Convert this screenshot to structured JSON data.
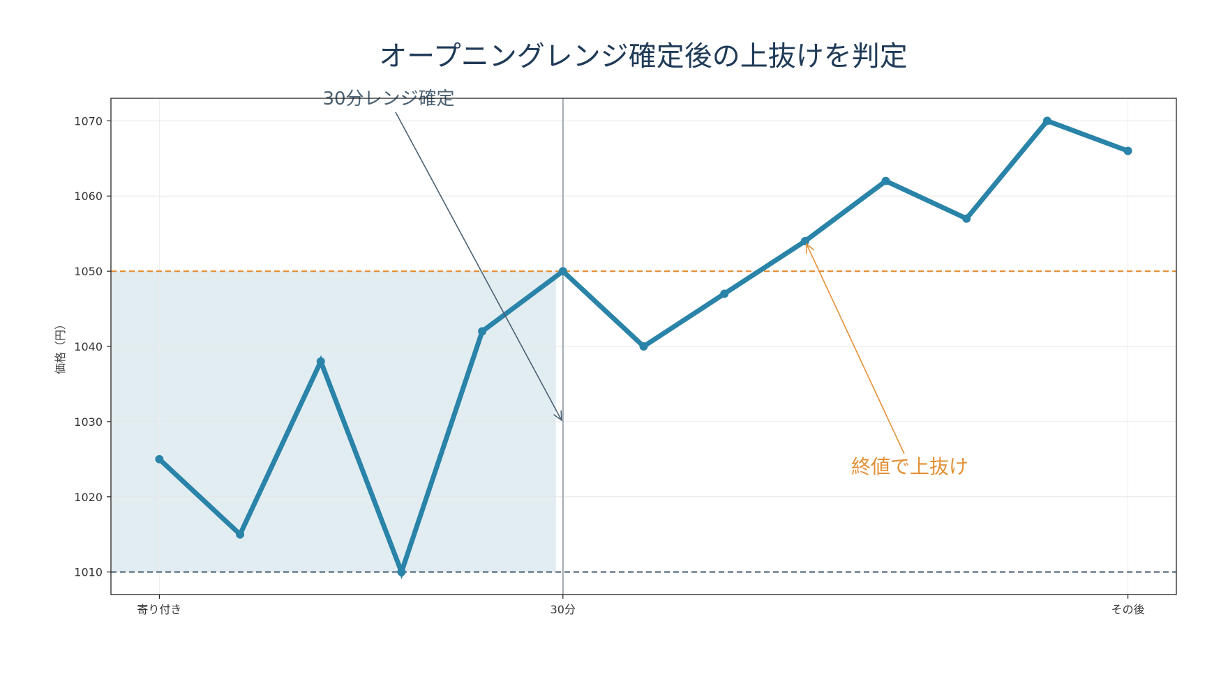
{
  "chart_data": {
    "type": "line",
    "title": "オープニングレンジ確定後の上抜けを判定",
    "xlabel": "",
    "ylabel": "価格（円）",
    "x": [
      0,
      1,
      2,
      3,
      4,
      5,
      6,
      7,
      8,
      9,
      10,
      11,
      12
    ],
    "x_ticks": [
      {
        "x": 0,
        "label": "寄り付き"
      },
      {
        "x": 5,
        "label": "30分"
      },
      {
        "x": 12,
        "label": "その後"
      }
    ],
    "series": [
      {
        "values": [
          1025,
          1015,
          1038,
          1010,
          1042,
          1050,
          1040,
          1047,
          1054,
          1062,
          1057,
          1070,
          1066
        ],
        "color": "#2a83a8"
      }
    ],
    "xlim": [
      -0.6,
      12.6
    ],
    "ylim": [
      1007,
      1073
    ],
    "yticks": [
      1010,
      1020,
      1030,
      1040,
      1050,
      1060,
      1070
    ],
    "grid": true,
    "range_high": 1050,
    "range_low": 1010,
    "range_end_x": 5,
    "colors": {
      "line": "#2a83a8",
      "range_high_line": "#e39036",
      "range_low_line": "#5a6f82",
      "range_fill": "#e2edf2",
      "vline": "#a5aeb6",
      "title": "#1f3b57"
    },
    "annotations": [
      {
        "text": "30分レンジ確定",
        "target_x": 5,
        "target_y": 1030,
        "color": "#4a6072"
      },
      {
        "text": "終値で上抜け",
        "target_x": 8,
        "target_y": 1054,
        "color": "#e39036"
      }
    ]
  }
}
